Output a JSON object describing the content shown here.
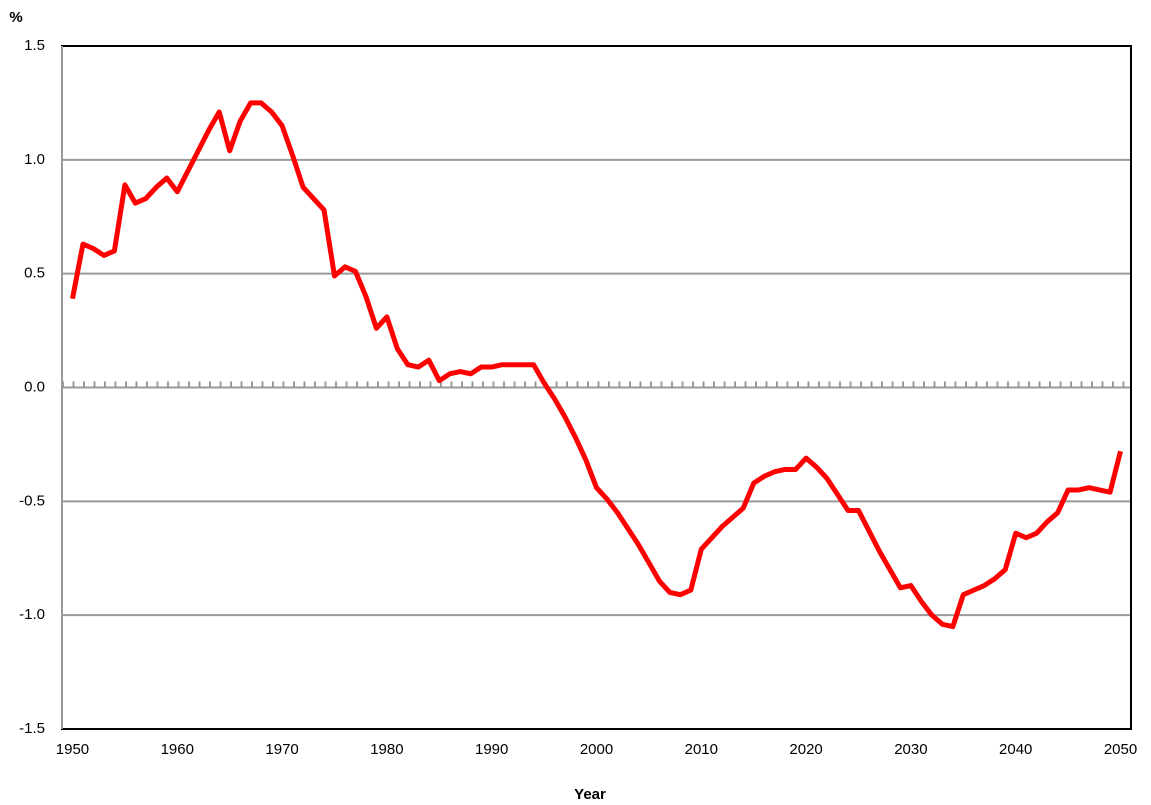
{
  "chart_data": {
    "type": "line",
    "y_label": "%",
    "x_label": "Year",
    "x": [
      1950,
      1951,
      1952,
      1953,
      1954,
      1955,
      1956,
      1957,
      1958,
      1959,
      1960,
      1961,
      1962,
      1963,
      1964,
      1965,
      1966,
      1967,
      1968,
      1969,
      1970,
      1971,
      1972,
      1973,
      1974,
      1975,
      1976,
      1977,
      1978,
      1979,
      1980,
      1981,
      1982,
      1983,
      1984,
      1985,
      1986,
      1987,
      1988,
      1989,
      1990,
      1991,
      1992,
      1993,
      1994,
      1995,
      1996,
      1997,
      1998,
      1999,
      2000,
      2001,
      2002,
      2003,
      2004,
      2005,
      2006,
      2007,
      2008,
      2009,
      2010,
      2011,
      2012,
      2013,
      2014,
      2015,
      2016,
      2017,
      2018,
      2019,
      2020,
      2021,
      2022,
      2023,
      2024,
      2025,
      2026,
      2027,
      2028,
      2029,
      2030,
      2031,
      2032,
      2033,
      2034,
      2035,
      2036,
      2037,
      2038,
      2039,
      2040,
      2041,
      2042,
      2043,
      2044,
      2045,
      2046,
      2047,
      2048,
      2049,
      2050
    ],
    "values": [
      0.39,
      0.63,
      0.61,
      0.58,
      0.6,
      0.89,
      0.81,
      0.83,
      0.88,
      0.92,
      0.86,
      0.95,
      1.04,
      1.13,
      1.21,
      1.04,
      1.17,
      1.25,
      1.25,
      1.21,
      1.15,
      1.02,
      0.88,
      0.83,
      0.78,
      0.49,
      0.53,
      0.51,
      0.4,
      0.26,
      0.31,
      0.17,
      0.1,
      0.09,
      0.12,
      0.03,
      0.06,
      0.07,
      0.06,
      0.09,
      0.09,
      0.1,
      0.1,
      0.1,
      0.1,
      0.02,
      -0.05,
      -0.13,
      -0.22,
      -0.32,
      -0.44,
      -0.49,
      -0.55,
      -0.62,
      -0.69,
      -0.77,
      -0.85,
      -0.9,
      -0.91,
      -0.89,
      -0.71,
      -0.66,
      -0.61,
      -0.57,
      -0.53,
      -0.42,
      -0.39,
      -0.37,
      -0.36,
      -0.36,
      -0.31,
      -0.35,
      -0.4,
      -0.47,
      -0.54,
      -0.54,
      -0.63,
      -0.72,
      -0.8,
      -0.88,
      -0.87,
      -0.94,
      -1.0,
      -1.04,
      -1.05,
      -0.91,
      -0.89,
      -0.87,
      -0.84,
      -0.8,
      -0.64,
      -0.66,
      -0.64,
      -0.59,
      -0.55,
      -0.45,
      -0.45,
      -0.44,
      -0.45,
      -0.46,
      -0.28
    ],
    "color": "#ff0000",
    "xlim": [
      1949,
      2051
    ],
    "xticks": [
      1950,
      1960,
      1970,
      1980,
      1990,
      2000,
      2010,
      2020,
      2030,
      2040,
      2050
    ],
    "ylim": [
      -1.5,
      1.5
    ],
    "yticks": [
      1.5,
      {
        "value": 1,
        "label": "1.0"
      },
      0.5,
      {
        "value": 0,
        "label": "0.0"
      },
      -0.5,
      {
        "value": -1,
        "label": "-1.0"
      },
      -1.5
    ],
    "grid": true
  }
}
